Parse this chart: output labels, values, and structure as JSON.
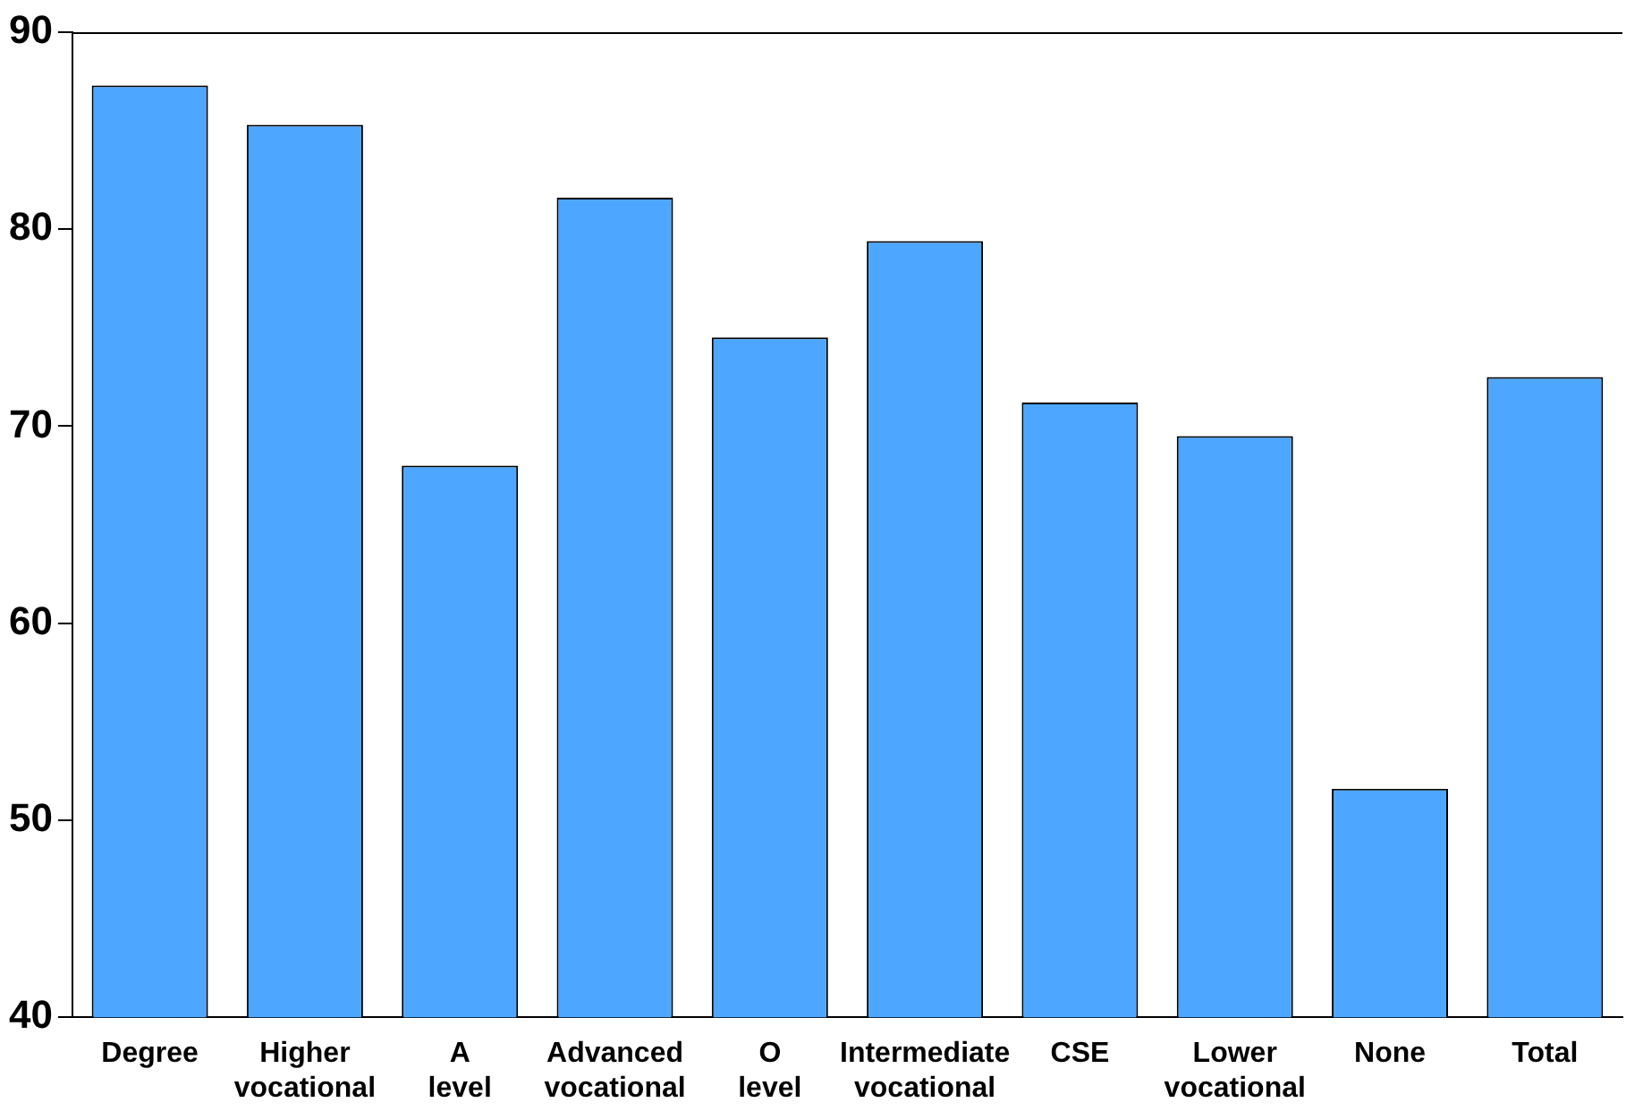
{
  "chart_data": {
    "type": "bar",
    "categories": [
      "Degree",
      "Higher vocational",
      "A level",
      "Advanced vocational",
      "O level",
      "Intermediate vocational",
      "CSE",
      "Lower vocational",
      "None",
      "Total"
    ],
    "values": [
      87.3,
      85.3,
      68.0,
      81.6,
      74.5,
      79.4,
      71.2,
      69.5,
      51.6,
      72.5
    ],
    "color": "#4da6ff",
    "ylim": [
      40,
      90
    ],
    "yticks": [
      40,
      50,
      60,
      70,
      80,
      90
    ],
    "grid": false,
    "legend": false
  }
}
